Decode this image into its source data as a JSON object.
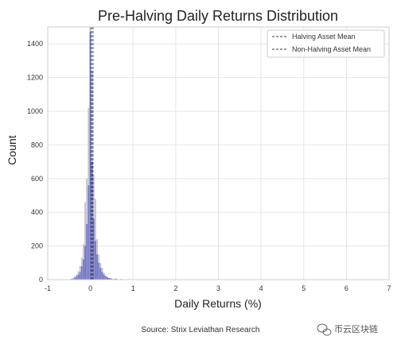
{
  "chart_data": {
    "type": "bar",
    "title": "Pre-Halving Daily Returns Distribution",
    "xlabel": "Daily Returns (%)",
    "ylabel": "Count",
    "xlim": [
      -1,
      7
    ],
    "ylim": [
      0,
      1500
    ],
    "x_ticks": [
      "-1",
      "0",
      "1",
      "2",
      "3",
      "4",
      "5",
      "6",
      "7"
    ],
    "y_ticks": [
      "0",
      "200",
      "400",
      "600",
      "800",
      "1000",
      "1200",
      "1400"
    ],
    "grid": true,
    "legend_position": "top-right",
    "bin_width": 0.04,
    "series": [
      {
        "name": "Halving Asset",
        "color": "#3a3fbf",
        "x": [
          -0.44,
          -0.4,
          -0.36,
          -0.32,
          -0.28,
          -0.24,
          -0.2,
          -0.16,
          -0.12,
          -0.08,
          -0.04,
          0.0,
          0.04,
          0.08,
          0.12,
          0.16,
          0.2,
          0.24,
          0.28,
          0.32,
          0.36,
          0.4,
          0.44,
          0.48,
          0.6,
          0.72,
          0.92
        ],
        "values": [
          5,
          8,
          12,
          20,
          30,
          45,
          80,
          120,
          200,
          330,
          560,
          1470,
          700,
          360,
          230,
          150,
          100,
          70,
          45,
          30,
          20,
          15,
          10,
          8,
          6,
          4,
          3
        ]
      },
      {
        "name": "Non-Halving Asset",
        "color": "#b9b9c6",
        "x": [
          -0.36,
          -0.32,
          -0.28,
          -0.24,
          -0.2,
          -0.16,
          -0.12,
          -0.08,
          -0.04,
          0.0,
          0.04,
          0.08,
          0.12,
          0.16,
          0.2,
          0.24,
          0.28,
          0.32,
          0.36,
          0.4,
          0.44,
          0.48,
          0.52,
          0.56,
          0.6,
          0.64,
          0.68
        ],
        "values": [
          20,
          30,
          50,
          80,
          130,
          210,
          460,
          600,
          1020,
          1500,
          1240,
          620,
          480,
          240,
          150,
          100,
          70,
          40,
          25,
          15,
          10,
          8,
          6,
          5,
          4,
          3,
          2
        ]
      }
    ],
    "mean_lines": [
      {
        "label": "Halving Asset Mean",
        "x": 0.02,
        "color": "#333333"
      },
      {
        "label": "Non-Halving Asset Mean",
        "x": 0.06,
        "color": "#333333"
      }
    ]
  },
  "footer": {
    "source": "Source: Strix Leviathan Research",
    "watermark": "币云区块链",
    "watermark_icon": "wechat-icon"
  }
}
